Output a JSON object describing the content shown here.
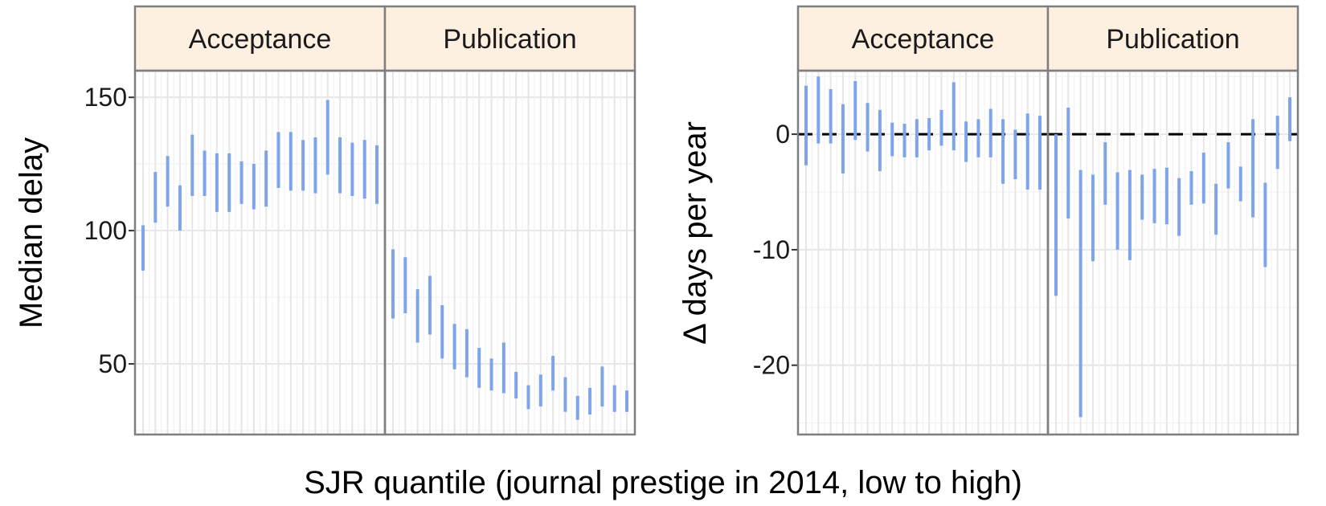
{
  "chart_data": {
    "type": "errorbar",
    "xlabel": "SJR quantile (journal prestige in 2014, low to high)",
    "colors": {
      "bar": "#7ea5ec",
      "strip": "#fdf0e1",
      "border": "#7f7f7f"
    },
    "charts": [
      {
        "id": "median",
        "ylabel": "Median delay",
        "ylim": [
          23.5,
          160
        ],
        "yticks": [
          50,
          100,
          150
        ],
        "reference_line": null,
        "panels": [
          {
            "title": "Acceptance",
            "intervals": [
              [
                85,
                102
              ],
              [
                103,
                122
              ],
              [
                109,
                128
              ],
              [
                100,
                117
              ],
              [
                113,
                136
              ],
              [
                113,
                130
              ],
              [
                107,
                129
              ],
              [
                107,
                129
              ],
              [
                110,
                126
              ],
              [
                108,
                125
              ],
              [
                109,
                130
              ],
              [
                116,
                137
              ],
              [
                115,
                137
              ],
              [
                115,
                134
              ],
              [
                114,
                135
              ],
              [
                121,
                149
              ],
              [
                114,
                135
              ],
              [
                113,
                133
              ],
              [
                112,
                134
              ],
              [
                110,
                132
              ]
            ]
          },
          {
            "title": "Publication",
            "intervals": [
              [
                67,
                93
              ],
              [
                69,
                90
              ],
              [
                58,
                78
              ],
              [
                61,
                83
              ],
              [
                52,
                72
              ],
              [
                48,
                65
              ],
              [
                45,
                63
              ],
              [
                41,
                56
              ],
              [
                40,
                52
              ],
              [
                39,
                58
              ],
              [
                37,
                47
              ],
              [
                33,
                42
              ],
              [
                34,
                46
              ],
              [
                40,
                53
              ],
              [
                32,
                45
              ],
              [
                29,
                38
              ],
              [
                31,
                41
              ],
              [
                34,
                49
              ],
              [
                32,
                42
              ],
              [
                32,
                40
              ]
            ]
          }
        ]
      },
      {
        "id": "delta",
        "ylabel": "Δ days per year",
        "ylim": [
          -26,
          5.5
        ],
        "yticks": [
          -20,
          -10,
          0
        ],
        "reference_line": 0,
        "panels": [
          {
            "title": "Acceptance",
            "intervals": [
              [
                -2.7,
                4.2
              ],
              [
                -0.8,
                5.0
              ],
              [
                -0.8,
                3.9
              ],
              [
                -3.4,
                2.6
              ],
              [
                -0.5,
                4.6
              ],
              [
                -1.5,
                2.7
              ],
              [
                -3.2,
                2.1
              ],
              [
                -1.9,
                1.0
              ],
              [
                -2.0,
                0.9
              ],
              [
                -2.0,
                1.3
              ],
              [
                -1.4,
                1.4
              ],
              [
                -1.0,
                2.1
              ],
              [
                -1.4,
                4.5
              ],
              [
                -2.4,
                1.1
              ],
              [
                -2.0,
                1.3
              ],
              [
                -2.0,
                2.2
              ],
              [
                -4.3,
                1.3
              ],
              [
                -3.9,
                0.4
              ],
              [
                -4.8,
                1.8
              ],
              [
                -4.8,
                1.6
              ]
            ]
          },
          {
            "title": "Publication",
            "intervals": [
              [
                -14,
                0
              ],
              [
                -7.3,
                2.3
              ],
              [
                -24.5,
                -3.1
              ],
              [
                -11,
                -3.5
              ],
              [
                -6.1,
                -0.7
              ],
              [
                -10,
                -3.3
              ],
              [
                -10.9,
                -3.1
              ],
              [
                -7.4,
                -3.5
              ],
              [
                -7.7,
                -3.0
              ],
              [
                -7.8,
                -2.9
              ],
              [
                -8.8,
                -3.8
              ],
              [
                -6.1,
                -3.2
              ],
              [
                -6.0,
                -1.6
              ],
              [
                -8.7,
                -4.3
              ],
              [
                -4.7,
                -0.7
              ],
              [
                -5.8,
                -2.8
              ],
              [
                -7.2,
                1.3
              ],
              [
                -11.5,
                -4.2
              ],
              [
                -3.0,
                1.6
              ],
              [
                -0.6,
                3.2
              ]
            ]
          }
        ]
      }
    ]
  }
}
